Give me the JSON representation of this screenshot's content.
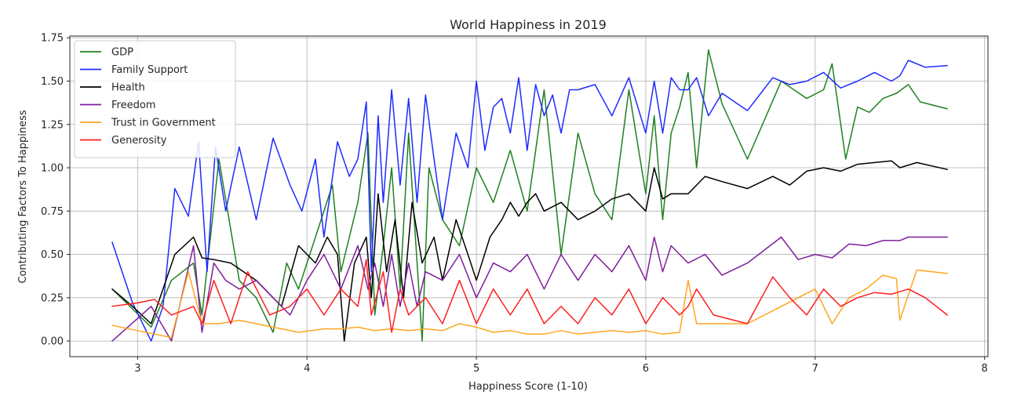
{
  "chart_data": {
    "type": "line",
    "title": "World Happiness in 2019",
    "xlabel": "Happiness Score (1-10)",
    "ylabel": "Contributing Factors To Happiness",
    "xlim": [
      2.6,
      8.02
    ],
    "ylim": [
      -0.09,
      1.76
    ],
    "xticks": [
      3,
      4,
      5,
      6,
      7,
      8
    ],
    "yticks": [
      0.0,
      0.25,
      0.5,
      0.75,
      1.0,
      1.25,
      1.5,
      1.75
    ],
    "xtick_labels": [
      "3",
      "4",
      "5",
      "6",
      "7",
      "8"
    ],
    "ytick_labels": [
      "0.00",
      "0.25",
      "0.50",
      "0.75",
      "1.00",
      "1.25",
      "1.50",
      "1.75"
    ],
    "grid": true,
    "legend_position": "top-left",
    "series": [
      {
        "name": "GDP",
        "color": "#208020",
        "x": [
          2.85,
          3.08,
          3.2,
          3.33,
          3.38,
          3.48,
          3.6,
          3.7,
          3.8,
          3.88,
          3.95,
          4.05,
          4.15,
          4.2,
          4.3,
          4.36,
          4.4,
          4.45,
          4.5,
          4.55,
          4.6,
          4.68,
          4.72,
          4.8,
          4.9,
          5.0,
          5.1,
          5.2,
          5.3,
          5.4,
          5.5,
          5.6,
          5.7,
          5.8,
          5.9,
          6.0,
          6.05,
          6.1,
          6.15,
          6.2,
          6.25,
          6.3,
          6.37,
          6.45,
          6.6,
          6.8,
          6.95,
          7.05,
          7.1,
          7.18,
          7.25,
          7.32,
          7.4,
          7.48,
          7.55,
          7.62,
          7.78
        ],
        "values": [
          0.3,
          0.08,
          0.35,
          0.45,
          0.15,
          1.05,
          0.35,
          0.25,
          0.05,
          0.45,
          0.3,
          0.6,
          0.9,
          0.4,
          0.8,
          1.2,
          0.15,
          0.55,
          1.0,
          0.3,
          1.2,
          0.0,
          1.0,
          0.7,
          0.55,
          1.0,
          0.8,
          1.1,
          0.75,
          1.45,
          0.5,
          1.2,
          0.85,
          0.7,
          1.45,
          0.85,
          1.3,
          0.7,
          1.2,
          1.35,
          1.55,
          1.0,
          1.68,
          1.37,
          1.05,
          1.5,
          1.4,
          1.45,
          1.6,
          1.05,
          1.35,
          1.32,
          1.4,
          1.43,
          1.48,
          1.38,
          1.34
        ]
      },
      {
        "name": "Family Support",
        "color": "#1f2bff",
        "x": [
          2.85,
          2.97,
          3.08,
          3.15,
          3.22,
          3.3,
          3.36,
          3.41,
          3.46,
          3.52,
          3.6,
          3.7,
          3.8,
          3.9,
          3.97,
          4.05,
          4.1,
          4.18,
          4.25,
          4.3,
          4.35,
          4.38,
          4.42,
          4.45,
          4.5,
          4.55,
          4.6,
          4.65,
          4.7,
          4.75,
          4.8,
          4.88,
          4.95,
          5.0,
          5.05,
          5.1,
          5.15,
          5.2,
          5.25,
          5.3,
          5.35,
          5.4,
          5.45,
          5.5,
          5.55,
          5.6,
          5.7,
          5.8,
          5.9,
          6.0,
          6.05,
          6.1,
          6.15,
          6.2,
          6.25,
          6.3,
          6.37,
          6.45,
          6.6,
          6.75,
          6.85,
          6.95,
          7.05,
          7.15,
          7.25,
          7.35,
          7.45,
          7.5,
          7.55,
          7.65,
          7.78
        ],
        "values": [
          0.57,
          0.22,
          0.0,
          0.2,
          0.88,
          0.72,
          1.15,
          0.4,
          1.12,
          0.75,
          1.12,
          0.7,
          1.17,
          0.9,
          0.75,
          1.05,
          0.6,
          1.15,
          0.95,
          1.05,
          1.38,
          0.4,
          1.3,
          0.8,
          1.45,
          0.9,
          1.4,
          0.8,
          1.42,
          1.05,
          0.7,
          1.2,
          1.0,
          1.5,
          1.1,
          1.35,
          1.4,
          1.2,
          1.52,
          1.1,
          1.48,
          1.3,
          1.42,
          1.2,
          1.45,
          1.45,
          1.48,
          1.3,
          1.52,
          1.2,
          1.5,
          1.2,
          1.52,
          1.45,
          1.45,
          1.52,
          1.3,
          1.43,
          1.33,
          1.52,
          1.48,
          1.5,
          1.55,
          1.46,
          1.5,
          1.55,
          1.5,
          1.53,
          1.62,
          1.58,
          1.59
        ]
      },
      {
        "name": "Health",
        "color": "#000000",
        "x": [
          2.85,
          2.97,
          3.08,
          3.22,
          3.33,
          3.38,
          3.45,
          3.55,
          3.7,
          3.85,
          3.95,
          4.05,
          4.12,
          4.18,
          4.22,
          4.28,
          4.35,
          4.38,
          4.42,
          4.47,
          4.52,
          4.57,
          4.62,
          4.68,
          4.75,
          4.8,
          4.88,
          4.95,
          5.0,
          5.08,
          5.15,
          5.2,
          5.25,
          5.3,
          5.35,
          5.4,
          5.5,
          5.6,
          5.7,
          5.8,
          5.9,
          6.0,
          6.05,
          6.1,
          6.15,
          6.25,
          6.35,
          6.45,
          6.6,
          6.75,
          6.85,
          6.95,
          7.05,
          7.15,
          7.25,
          7.35,
          7.45,
          7.5,
          7.6,
          7.78
        ],
        "values": [
          0.3,
          0.2,
          0.1,
          0.5,
          0.6,
          0.48,
          0.47,
          0.45,
          0.35,
          0.2,
          0.55,
          0.45,
          0.6,
          0.5,
          0.0,
          0.45,
          0.6,
          0.25,
          0.85,
          0.4,
          0.7,
          0.25,
          0.8,
          0.45,
          0.6,
          0.35,
          0.7,
          0.5,
          0.35,
          0.6,
          0.7,
          0.8,
          0.72,
          0.8,
          0.85,
          0.75,
          0.8,
          0.7,
          0.75,
          0.82,
          0.85,
          0.75,
          1.0,
          0.82,
          0.85,
          0.85,
          0.95,
          0.92,
          0.88,
          0.95,
          0.9,
          0.98,
          1.0,
          0.98,
          1.02,
          1.03,
          1.04,
          1.0,
          1.03,
          0.99
        ]
      },
      {
        "name": "Freedom",
        "color": "#7e1e9c",
        "x": [
          2.85,
          3.08,
          3.2,
          3.33,
          3.38,
          3.45,
          3.52,
          3.6,
          3.7,
          3.8,
          3.9,
          4.0,
          4.1,
          4.2,
          4.3,
          4.36,
          4.4,
          4.45,
          4.5,
          4.55,
          4.6,
          4.65,
          4.7,
          4.8,
          4.9,
          5.0,
          5.1,
          5.2,
          5.3,
          5.4,
          5.5,
          5.6,
          5.7,
          5.8,
          5.9,
          6.0,
          6.05,
          6.1,
          6.15,
          6.25,
          6.35,
          6.45,
          6.6,
          6.8,
          6.9,
          7.0,
          7.1,
          7.2,
          7.3,
          7.4,
          7.5,
          7.55,
          7.6,
          7.78
        ],
        "values": [
          0.0,
          0.2,
          0.0,
          0.55,
          0.05,
          0.45,
          0.35,
          0.3,
          0.35,
          0.25,
          0.15,
          0.35,
          0.5,
          0.3,
          0.55,
          0.3,
          0.45,
          0.2,
          0.5,
          0.2,
          0.45,
          0.2,
          0.4,
          0.35,
          0.5,
          0.25,
          0.45,
          0.4,
          0.5,
          0.3,
          0.5,
          0.35,
          0.5,
          0.4,
          0.55,
          0.35,
          0.6,
          0.4,
          0.55,
          0.45,
          0.5,
          0.38,
          0.45,
          0.6,
          0.47,
          0.5,
          0.48,
          0.56,
          0.55,
          0.58,
          0.58,
          0.6,
          0.6,
          0.6
        ]
      },
      {
        "name": "Trust in Government",
        "color": "#ffa520",
        "x": [
          2.85,
          3.0,
          3.2,
          3.3,
          3.38,
          3.48,
          3.6,
          3.8,
          3.95,
          4.1,
          4.2,
          4.3,
          4.4,
          4.5,
          4.6,
          4.7,
          4.8,
          4.9,
          5.0,
          5.1,
          5.2,
          5.3,
          5.4,
          5.5,
          5.6,
          5.7,
          5.8,
          5.9,
          6.0,
          6.1,
          6.2,
          6.25,
          6.3,
          6.4,
          6.6,
          6.8,
          6.9,
          7.0,
          7.1,
          7.2,
          7.3,
          7.4,
          7.48,
          7.5,
          7.6,
          7.78
        ],
        "values": [
          0.09,
          0.06,
          0.02,
          0.4,
          0.1,
          0.1,
          0.12,
          0.08,
          0.05,
          0.07,
          0.07,
          0.08,
          0.06,
          0.07,
          0.06,
          0.07,
          0.06,
          0.1,
          0.08,
          0.05,
          0.06,
          0.04,
          0.04,
          0.06,
          0.04,
          0.05,
          0.06,
          0.05,
          0.06,
          0.04,
          0.05,
          0.35,
          0.1,
          0.1,
          0.1,
          0.2,
          0.25,
          0.3,
          0.1,
          0.25,
          0.3,
          0.38,
          0.36,
          0.12,
          0.41,
          0.39
        ]
      },
      {
        "name": "Generosity",
        "color": "#ff1f1f",
        "x": [
          2.85,
          3.0,
          3.1,
          3.2,
          3.33,
          3.38,
          3.45,
          3.55,
          3.65,
          3.78,
          3.9,
          4.0,
          4.1,
          4.2,
          4.3,
          4.35,
          4.38,
          4.45,
          4.5,
          4.55,
          4.6,
          4.7,
          4.8,
          4.9,
          5.0,
          5.1,
          5.2,
          5.3,
          5.4,
          5.5,
          5.6,
          5.7,
          5.8,
          5.9,
          6.0,
          6.1,
          6.2,
          6.25,
          6.3,
          6.4,
          6.6,
          6.75,
          6.85,
          6.95,
          7.05,
          7.15,
          7.25,
          7.35,
          7.45,
          7.55,
          7.65,
          7.78
        ],
        "values": [
          0.2,
          0.22,
          0.24,
          0.15,
          0.2,
          0.1,
          0.35,
          0.1,
          0.4,
          0.15,
          0.2,
          0.3,
          0.15,
          0.3,
          0.2,
          0.47,
          0.15,
          0.4,
          0.05,
          0.3,
          0.15,
          0.25,
          0.1,
          0.35,
          0.1,
          0.3,
          0.15,
          0.3,
          0.1,
          0.2,
          0.1,
          0.25,
          0.15,
          0.3,
          0.1,
          0.25,
          0.15,
          0.2,
          0.3,
          0.15,
          0.1,
          0.37,
          0.25,
          0.15,
          0.3,
          0.2,
          0.25,
          0.28,
          0.27,
          0.3,
          0.25,
          0.15
        ]
      }
    ]
  }
}
